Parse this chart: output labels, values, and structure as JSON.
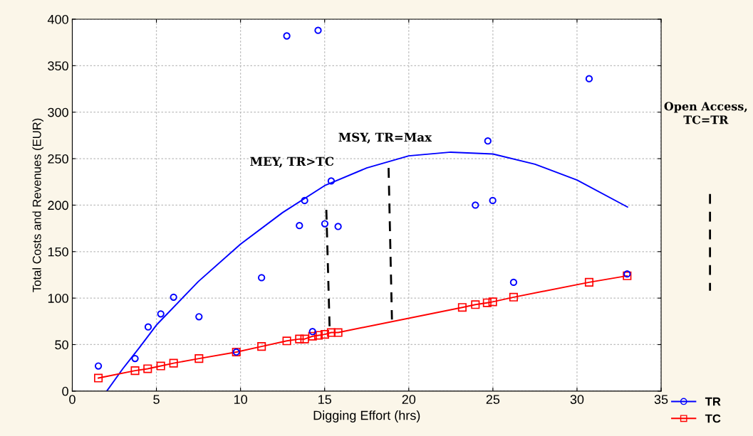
{
  "chart_data": {
    "type": "scatter",
    "xlabel": "Digging Effort (hrs)",
    "ylabel": "Total Costs and Revenues (EUR)",
    "xlim": [
      0,
      35
    ],
    "xticks": [
      0,
      5,
      10,
      15,
      20,
      25,
      30,
      35
    ],
    "ylim": [
      0,
      400
    ],
    "yticks": [
      0,
      50,
      100,
      150,
      200,
      250,
      300,
      350,
      400
    ],
    "grid": true,
    "legend": "bottom right",
    "series": [
      {
        "name": "TR",
        "color": "#0000ff",
        "marker": "circle",
        "x": [
          1.55,
          3.73,
          4.51,
          5.26,
          6.02,
          7.53,
          9.75,
          11.25,
          12.75,
          13.5,
          13.81,
          14.28,
          14.61,
          15.01,
          15.39,
          15.8,
          23.96,
          24.7,
          24.99,
          26.23,
          30.72,
          32.98
        ],
        "values": [
          27,
          35,
          69,
          83,
          101,
          80,
          42,
          122,
          382,
          178,
          205,
          64,
          388,
          180,
          226,
          177,
          200,
          269,
          205,
          117,
          336,
          126
        ]
      },
      {
        "type": "line",
        "color": "#0000ff",
        "marker": "none",
        "x": [
          2.05,
          3,
          4,
          5,
          7.5,
          10,
          12.5,
          15,
          17.5,
          20,
          22.5,
          25,
          27.5,
          30,
          33
        ],
        "values": [
          0,
          24,
          47,
          71,
          118,
          158,
          192,
          221,
          240,
          253,
          257,
          255,
          244,
          227,
          198
        ]
      },
      {
        "name": "TC",
        "type": "line",
        "color": "#ff0000",
        "marker": "square",
        "x": [
          1.55,
          3.73,
          4.48,
          5.26,
          6.02,
          7.53,
          9.75,
          11.25,
          12.75,
          13.5,
          13.81,
          14.28,
          14.63,
          15.01,
          15.39,
          15.8,
          23.18,
          23.96,
          24.66,
          24.99,
          26.23,
          30.72,
          32.98
        ],
        "values": [
          14,
          22,
          24,
          27,
          30,
          35,
          42,
          48,
          54,
          56,
          56,
          59,
          60,
          61,
          63,
          63,
          90,
          93,
          95,
          96,
          101,
          117,
          124
        ]
      },
      {
        "type": "line",
        "color": "#000000",
        "marker": "none",
        "line_style": "dashed",
        "x": [
          15.1,
          15.3
        ],
        "values": [
          195,
          65
        ]
      },
      {
        "type": "line",
        "color": "#000000",
        "marker": "none",
        "line_style": "dashed",
        "x": [
          18.8,
          19.0
        ],
        "values": [
          240,
          77
        ]
      }
    ],
    "annotations": [
      "MEY, TR>TC",
      "MSY, TR=Max",
      "Open Access,\nTC=TR"
    ]
  }
}
